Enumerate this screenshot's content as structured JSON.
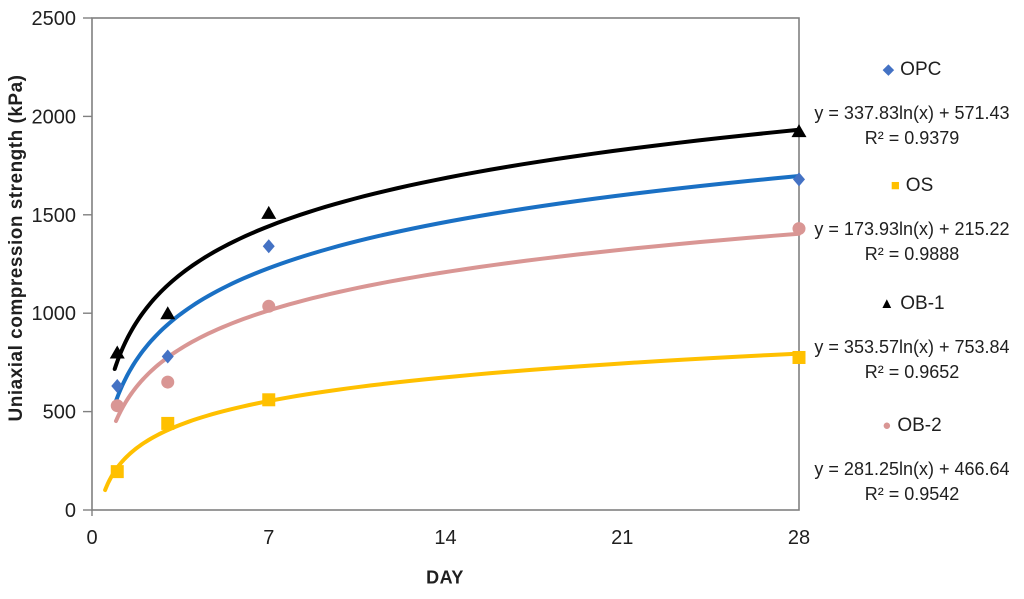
{
  "chart_data": {
    "type": "scatter",
    "title": "",
    "xlabel": "DAY",
    "ylabel": "Uniaxial compression strength (kPa)",
    "xlim": [
      0,
      28
    ],
    "ylim": [
      0,
      2500
    ],
    "x_ticks": [
      0,
      7,
      14,
      21,
      28
    ],
    "y_ticks": [
      0,
      500,
      1000,
      1500,
      2000,
      2500
    ],
    "grid": false,
    "legend_position": "right",
    "axis_color": "#808080",
    "text_color": "#1f1f1f",
    "series": [
      {
        "name": "OPC",
        "marker": "diamond",
        "marker_color": "#4472C4",
        "line_color": "#1A70C4",
        "x": [
          1,
          3,
          7,
          28
        ],
        "y": [
          630,
          780,
          1340,
          1680
        ],
        "trend": {
          "type": "log",
          "a": 337.83,
          "b": 571.43,
          "x_start": 0.95,
          "equation": "y = 337.83ln(x) + 571.43",
          "r2_label": "R² = 0.9379"
        }
      },
      {
        "name": "OS",
        "marker": "square",
        "marker_color": "#FFC000",
        "line_color": "#FFC000",
        "x": [
          1,
          3,
          7,
          28
        ],
        "y": [
          195,
          440,
          560,
          775
        ],
        "trend": {
          "type": "log",
          "a": 173.93,
          "b": 215.22,
          "x_start": 0.52,
          "equation": "y = 173.93ln(x) + 215.22",
          "r2_label": "R² = 0.9888"
        }
      },
      {
        "name": "OB-1",
        "marker": "triangle",
        "marker_color": "#000000",
        "line_color": "#000000",
        "x": [
          1,
          3,
          7,
          28
        ],
        "y": [
          800,
          1000,
          1510,
          1925
        ],
        "trend": {
          "type": "log",
          "a": 353.57,
          "b": 753.84,
          "x_start": 0.9,
          "equation": "y = 353.57ln(x) + 753.84",
          "r2_label": "R² = 0.9652"
        }
      },
      {
        "name": "OB-2",
        "marker": "circle",
        "marker_color": "#D99694",
        "line_color": "#D99694",
        "x": [
          1,
          3,
          7,
          28
        ],
        "y": [
          530,
          650,
          1035,
          1430
        ],
        "trend": {
          "type": "log",
          "a": 281.25,
          "b": 466.64,
          "x_start": 0.95,
          "equation": "y = 281.25ln(x) + 466.64",
          "r2_label": "R² = 0.9542"
        }
      }
    ]
  }
}
